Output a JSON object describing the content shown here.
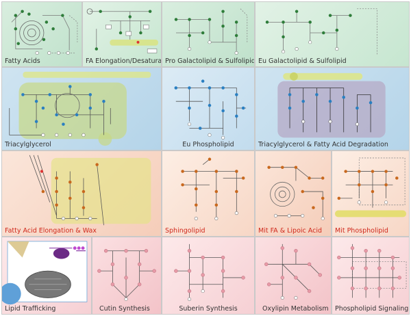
{
  "panels": {
    "fatty_acids": "Fatty Acids",
    "fa_elongation": "FA Elongation/Desaturation",
    "pro_galactolipid": "Pro Galactolipid & Sulfolipid",
    "eu_galactolipid": "Eu Galactolipid & Sulfolipid",
    "triacylglycerol": "Triacylglycerol",
    "eu_phospholipid": "Eu Phospholipid",
    "tag_fa_degradation": "Triacylglycerol & Fatty Acid Degradation",
    "fa_elongation_wax": "Fatty Acid Elongation & Wax",
    "sphingolipid": "Sphingolipid",
    "mit_fa_lipoic": "Mit FA & Lipoic Acid",
    "mit_phospholipid": "Mit Phospholipid",
    "lipid_trafficking": "Lipid Trafficking",
    "cutin_synthesis": "Cutin Synthesis",
    "suberin_synthesis": "Suberin Synthesis",
    "oxylipin_metabolism": "Oxylipin Metabolism",
    "phospholipid_signaling": "Phospholipid Signaling"
  },
  "colors": {
    "green_node": "#2e7d3a",
    "blue_node": "#2a7fc1",
    "orange_node": "#c8681e",
    "pink_node": "#e79aa7",
    "red_label": "#d0281b"
  }
}
